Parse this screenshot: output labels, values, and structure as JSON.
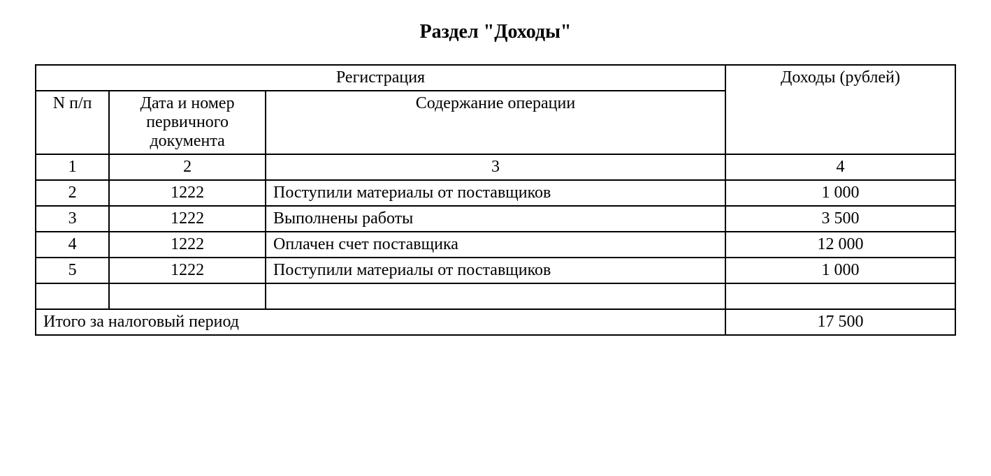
{
  "title": "Раздел \"Доходы\"",
  "header": {
    "registration": "Регистрация",
    "income": "Доходы (рублей)",
    "col1": "N п/п",
    "col2": "Дата и номер первичного документа",
    "col3": "Содержание операции"
  },
  "numberRow": {
    "c1": "1",
    "c2": "2",
    "c3": "3",
    "c4": "4"
  },
  "rows": [
    {
      "num": "2",
      "doc": "1222",
      "desc": "Поступили материалы от поставщиков",
      "income": "1 000"
    },
    {
      "num": "3",
      "doc": "1222",
      "desc": "Выполнены работы",
      "income": "3 500"
    },
    {
      "num": "4",
      "doc": "1222",
      "desc": "Оплачен счет поставщика",
      "income": "12 000"
    },
    {
      "num": "5",
      "doc": "1222",
      "desc": "Поступили материалы от поставщиков",
      "income": "1 000"
    }
  ],
  "empty": {
    "c1": "",
    "c2": "",
    "c3": "",
    "c4": ""
  },
  "total": {
    "label": "Итого за налоговый период",
    "value": "17 500"
  },
  "style": {
    "font_family": "Times New Roman",
    "title_fontsize": 28,
    "table_fontsize": 24,
    "border_color": "#000000",
    "background_color": "#ffffff",
    "text_color": "#000000",
    "column_widths_percent": [
      8,
      17,
      50,
      25
    ]
  }
}
